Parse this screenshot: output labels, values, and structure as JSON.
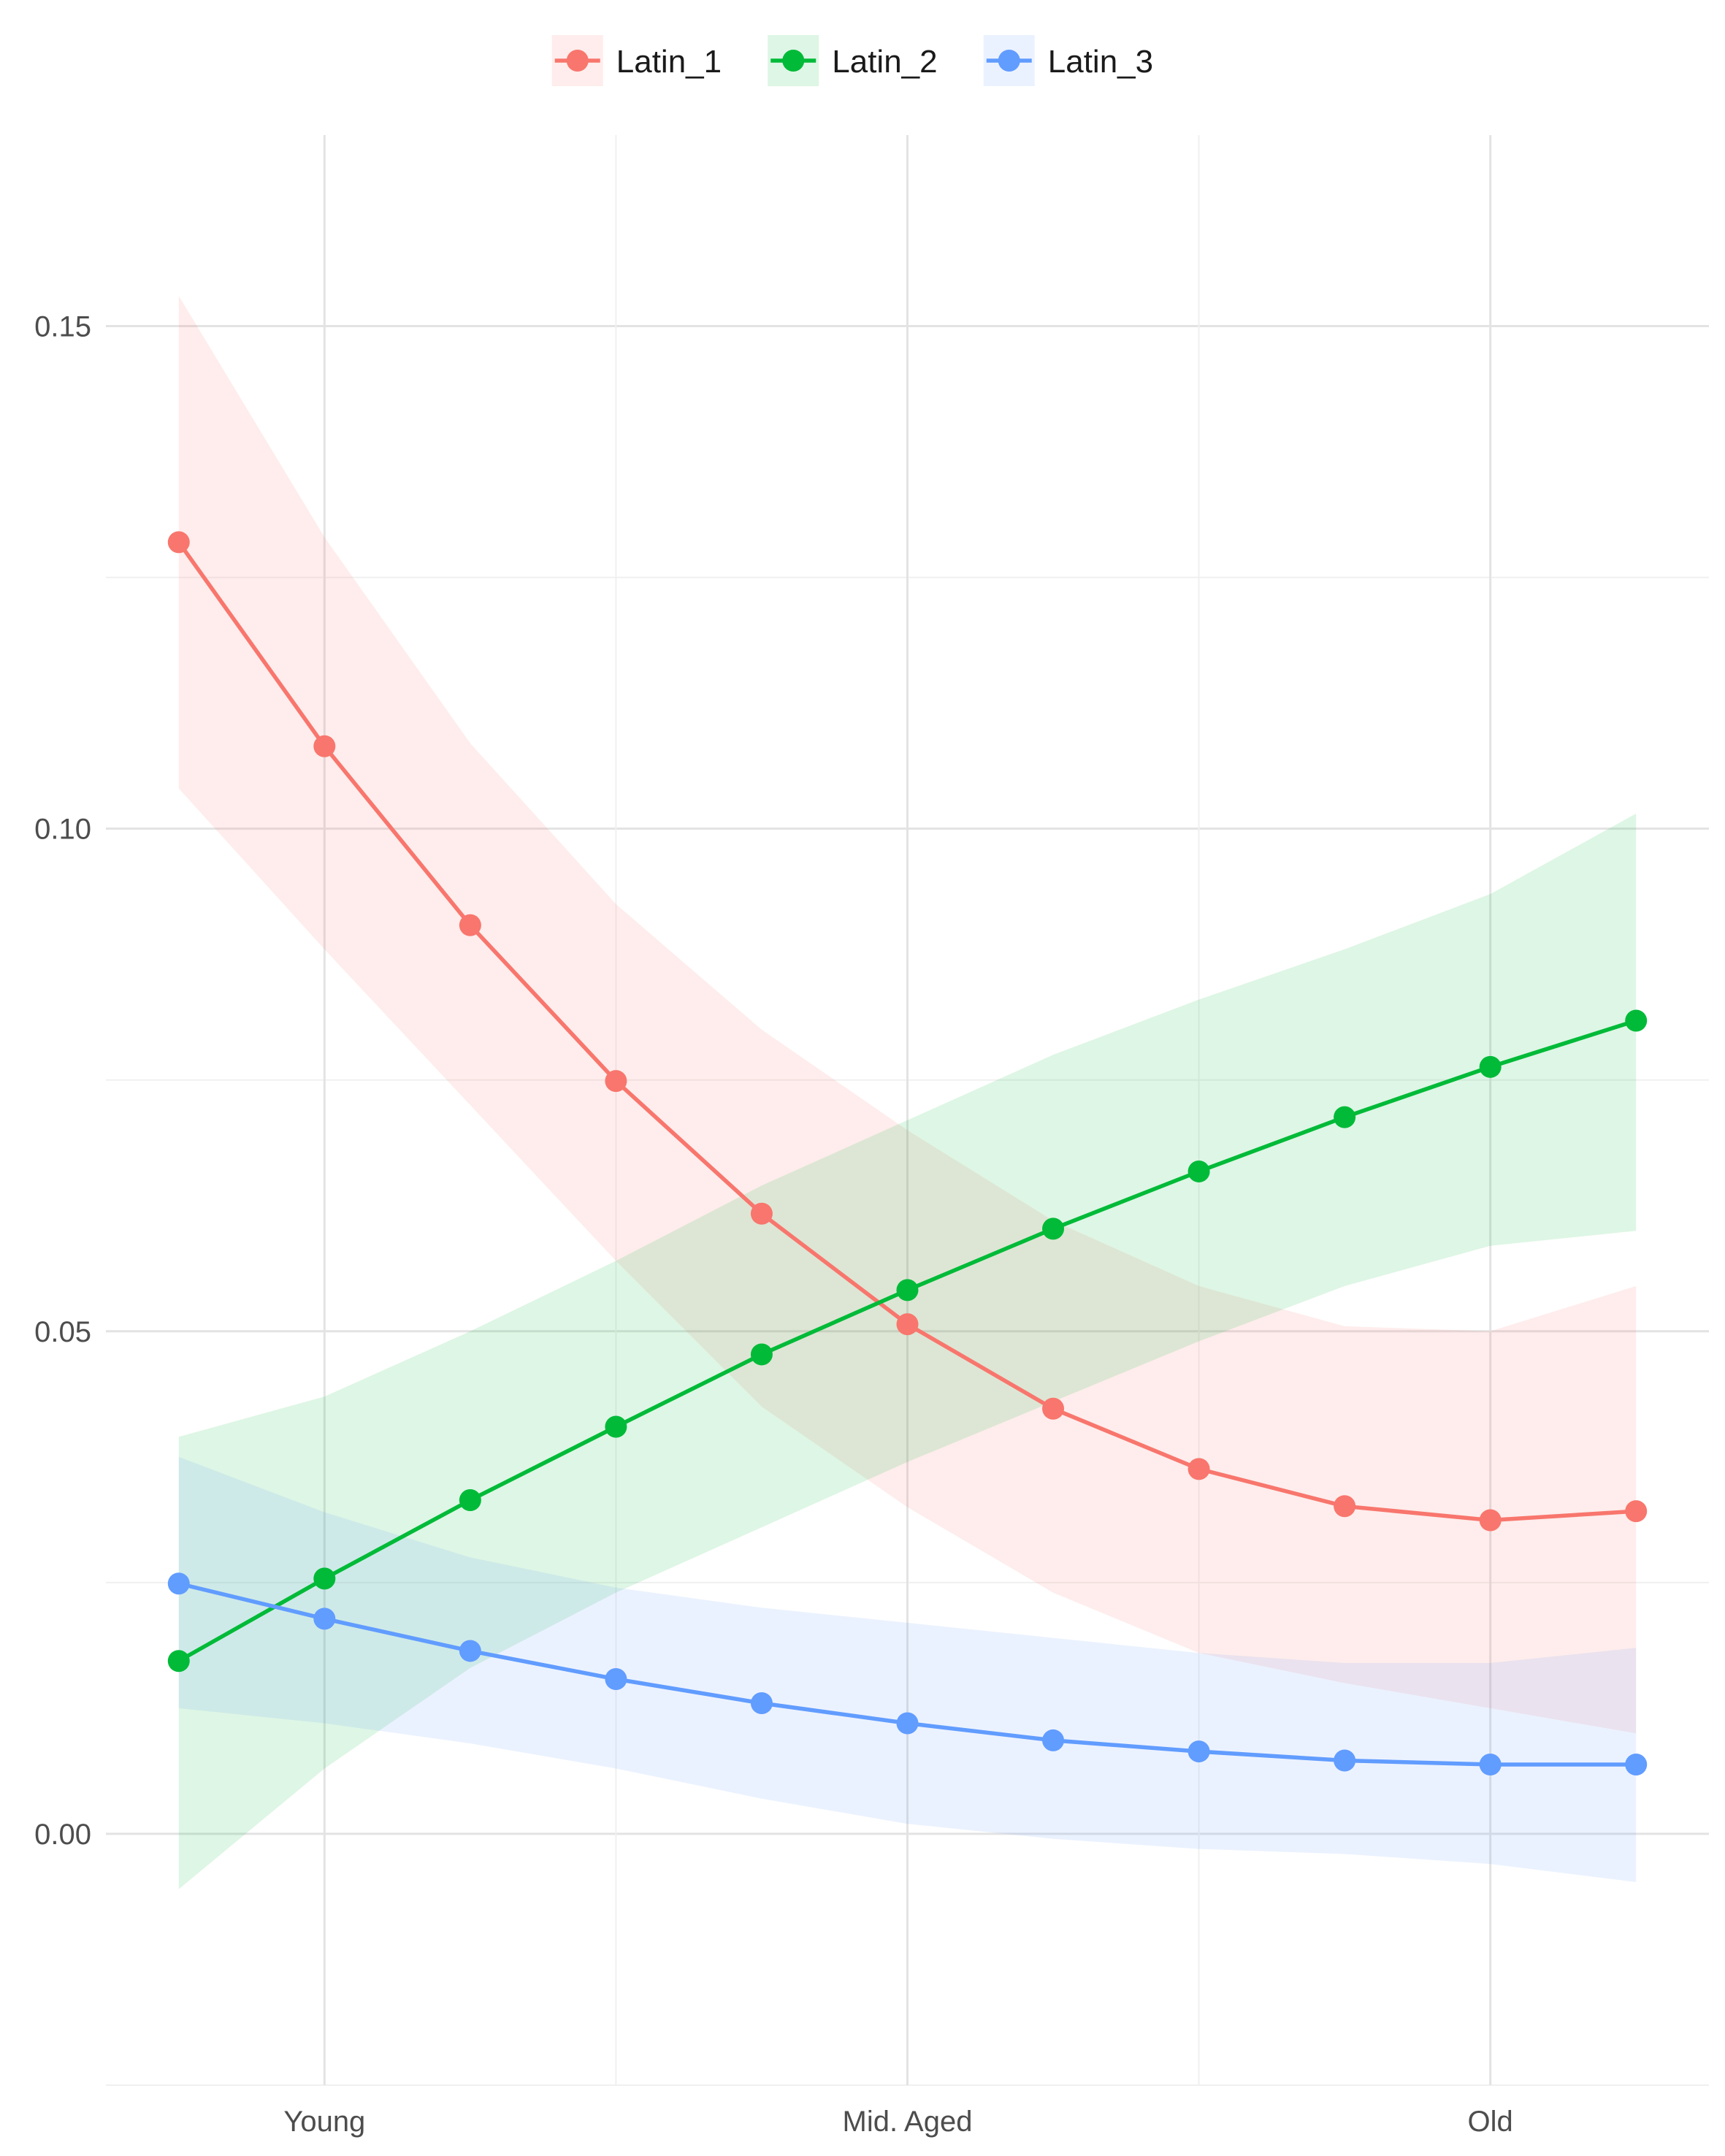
{
  "chart_data": {
    "type": "line",
    "title": "",
    "xlabel": "",
    "ylabel": "",
    "x": [
      1,
      2,
      3,
      4,
      5,
      6,
      7,
      8,
      9,
      10,
      11
    ],
    "x_ticks": [
      {
        "x": 2,
        "label": "Young"
      },
      {
        "x": 6,
        "label": "Mid. Aged"
      },
      {
        "x": 10,
        "label": "Old"
      }
    ],
    "y_ticks": [
      {
        "y": 0.0,
        "label": "0.00"
      },
      {
        "y": 0.05,
        "label": "0.05"
      },
      {
        "y": 0.1,
        "label": "0.10"
      },
      {
        "y": 0.15,
        "label": "0.15"
      }
    ],
    "xlim": [
      0.5,
      11.5
    ],
    "ylim": [
      -0.025,
      0.169
    ],
    "grid": true,
    "legend_position": "top",
    "series": [
      {
        "name": "Latin_1",
        "color": "#F8766D",
        "values": [
          0.1285,
          0.1082,
          0.0904,
          0.0749,
          0.0617,
          0.0507,
          0.0423,
          0.0363,
          0.0326,
          0.0312,
          0.0321
        ],
        "lower": [
          0.104,
          0.088,
          0.0725,
          0.057,
          0.0425,
          0.0325,
          0.024,
          0.018,
          0.015,
          0.0125,
          0.01
        ],
        "upper": [
          0.153,
          0.129,
          0.1085,
          0.0925,
          0.08,
          0.07,
          0.061,
          0.0545,
          0.0505,
          0.05,
          0.0545
        ]
      },
      {
        "name": "Latin_2",
        "color": "#00BA38",
        "values": [
          0.0172,
          0.0254,
          0.0332,
          0.0405,
          0.0477,
          0.0541,
          0.0602,
          0.0659,
          0.0713,
          0.0763,
          0.0809
        ],
        "lower": [
          -0.0055,
          0.0065,
          0.0165,
          0.024,
          0.0305,
          0.037,
          0.043,
          0.049,
          0.0545,
          0.0585,
          0.06
        ],
        "upper": [
          0.0395,
          0.0435,
          0.05,
          0.057,
          0.0645,
          0.071,
          0.0775,
          0.083,
          0.088,
          0.0935,
          0.1015
        ]
      },
      {
        "name": "Latin_3",
        "color": "#619CFF",
        "values": [
          0.0249,
          0.0214,
          0.0182,
          0.0154,
          0.013,
          0.011,
          0.0093,
          0.0082,
          0.0073,
          0.0069,
          0.0069
        ],
        "lower": [
          0.0125,
          0.011,
          0.009,
          0.0065,
          0.0035,
          0.001,
          -0.0005,
          -0.0015,
          -0.002,
          -0.003,
          -0.0048
        ],
        "upper": [
          0.0375,
          0.032,
          0.0275,
          0.0245,
          0.0225,
          0.021,
          0.0195,
          0.018,
          0.017,
          0.017,
          0.0185
        ]
      }
    ]
  }
}
